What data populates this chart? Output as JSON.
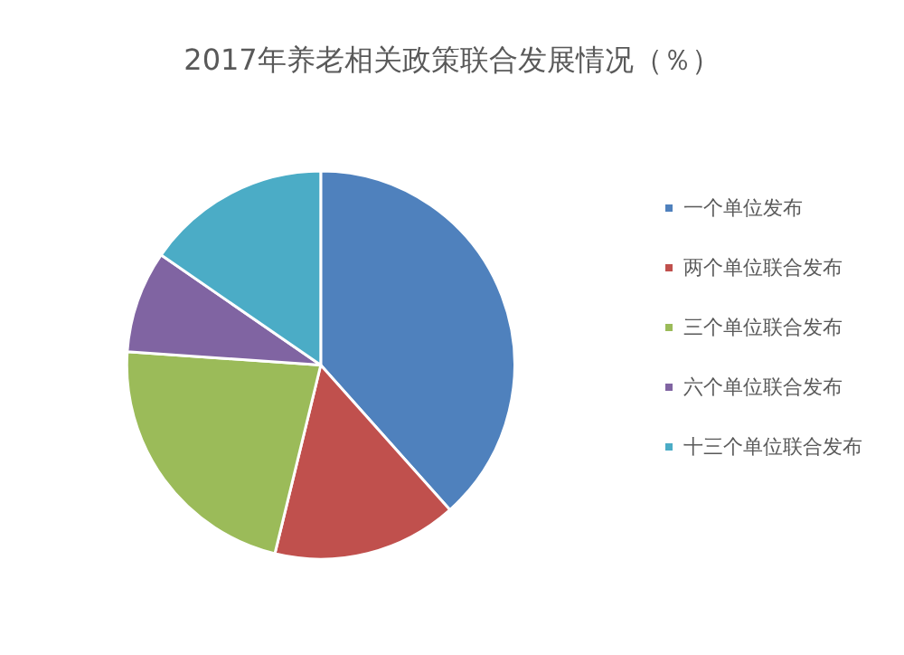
{
  "chart_data": {
    "type": "pie",
    "title": "2017年养老相关政策联合发展情况（％）",
    "categories": [
      "一个单位发布",
      "两个单位联合发布",
      "三个单位联合发布",
      "六个单位联合发布",
      "十三个单位联合发布"
    ],
    "values": [
      38.4,
      15.4,
      22.3,
      8.5,
      15.4
    ],
    "colors": [
      "#4f81bd",
      "#c0504d",
      "#9bbb59",
      "#8064a2",
      "#4bacc6"
    ],
    "legend": "right"
  }
}
